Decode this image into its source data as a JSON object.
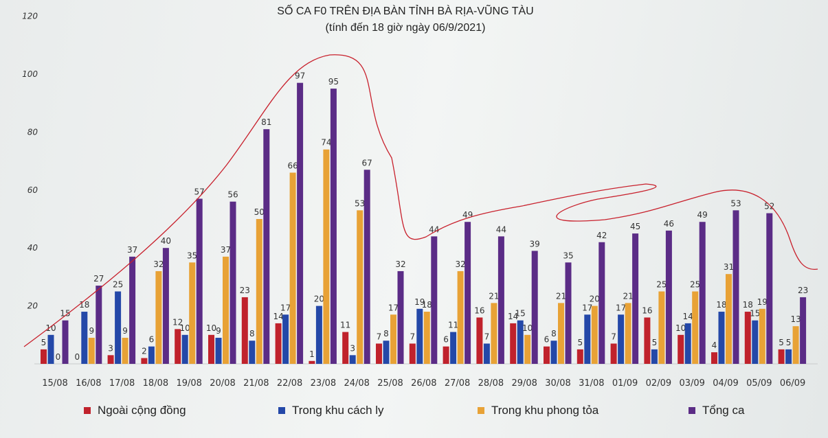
{
  "chart_data": {
    "type": "bar",
    "title": "SỐ CA F0 TRÊN ĐỊA BÀN TỈNH BÀ RỊA-VŨNG TÀU",
    "subtitle": "(tính đến 18 giờ ngày 06/9/2021)",
    "xlabel": "",
    "ylabel": "",
    "ylim": [
      0,
      120
    ],
    "yticks": [
      20,
      40,
      60,
      80,
      100,
      120
    ],
    "grid": false,
    "legend_position": "bottom",
    "categories": [
      "15/08",
      "16/08",
      "17/08",
      "18/08",
      "19/08",
      "20/08",
      "21/08",
      "22/08",
      "23/08",
      "24/08",
      "25/08",
      "26/08",
      "27/08",
      "28/08",
      "29/08",
      "30/08",
      "31/08",
      "01/09",
      "02/09",
      "03/09",
      "04/09",
      "05/09",
      "06/09"
    ],
    "series": [
      {
        "name": "Ngoài cộng đồng",
        "color": "#c0222c",
        "values": [
          5,
          0,
          3,
          2,
          12,
          10,
          23,
          14,
          1,
          11,
          7,
          7,
          6,
          16,
          14,
          6,
          5,
          7,
          16,
          10,
          4,
          18,
          5
        ]
      },
      {
        "name": "Trong khu cách ly",
        "color": "#2448a8",
        "values": [
          10,
          18,
          25,
          6,
          10,
          9,
          8,
          17,
          20,
          3,
          8,
          19,
          11,
          7,
          15,
          8,
          17,
          17,
          5,
          14,
          18,
          15,
          5
        ]
      },
      {
        "name": "Trong khu phong tỏa",
        "color": "#e8a236",
        "values": [
          0,
          9,
          9,
          32,
          35,
          37,
          50,
          66,
          74,
          53,
          17,
          18,
          32,
          21,
          10,
          21,
          20,
          21,
          25,
          25,
          31,
          19,
          13
        ]
      },
      {
        "name": "Tổng ca",
        "color": "#5b2c86",
        "values": [
          15,
          27,
          37,
          40,
          57,
          56,
          81,
          97,
          95,
          67,
          32,
          44,
          49,
          44,
          39,
          35,
          42,
          45,
          46,
          49,
          53,
          52,
          23
        ]
      }
    ]
  }
}
